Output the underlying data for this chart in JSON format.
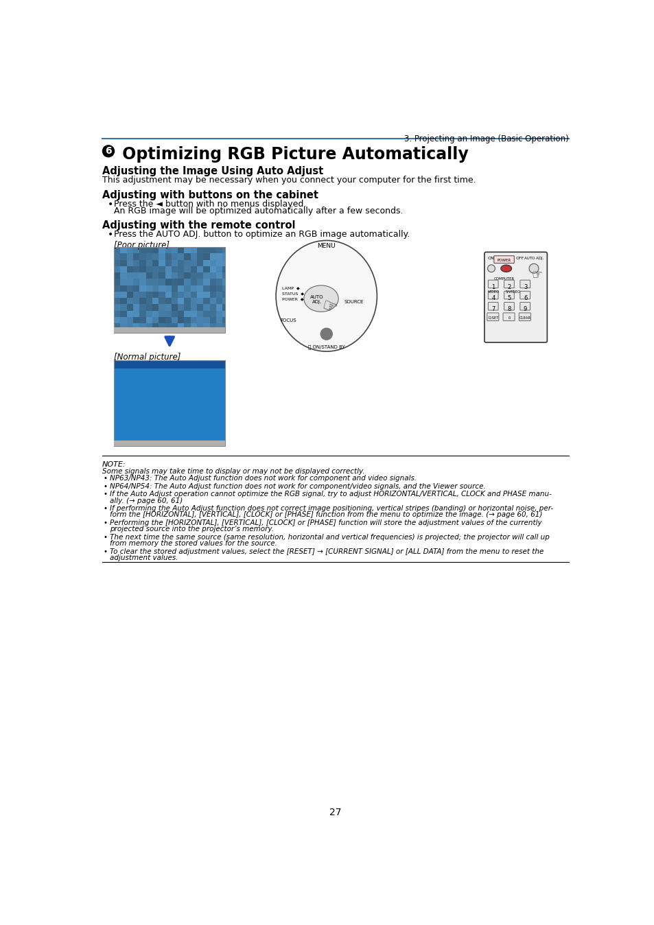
{
  "page_bg": "#ffffff",
  "header_line_color": "#2E75B6",
  "header_text": "3. Projecting an Image (Basic Operation)",
  "title_text": "Optimizing RGB Picture Automatically",
  "section1_heading": "Adjusting the Image Using Auto Adjust",
  "section1_body": "This adjustment may be necessary when you connect your computer for the first time.",
  "section2_heading": "Adjusting with buttons on the cabinet",
  "section2_bullet1_main": "Press the ◄ button with no menus displayed.",
  "section2_bullet1_sub": "An RGB image will be optimized automatically after a few seconds.",
  "section3_heading": "Adjusting with the remote control",
  "section3_bullet1": "Press the AUTO ADJ. button to optimize an RGB image automatically.",
  "poor_picture_label": "[Poor picture]",
  "normal_picture_label": "[Normal picture]",
  "note_label": "NOTE:",
  "note_intro": "Some signals may take time to display or may not be displayed correctly.",
  "note_bullets": [
    "NP63/NP43: The Auto Adjust function does not work for component and video signals.",
    "NP64/NP54: The Auto Adjust function does not work for component/video signals, and the Viewer source.",
    "If the Auto Adjust operation cannot optimize the RGB signal, try to adjust HORIZONTAL/VERTICAL, CLOCK and PHASE manu-\nally. (→ page 60, 61)",
    "If performing the Auto Adjust function does not correct image positioning, vertical stripes (banding) or horizontal noise, per-\nform the [HORIZONTAL], [VERTICAL], [CLOCK] or [PHASE] function from the menu to optimize the image. (→ page 60, 61)",
    "Performing the [HORIZONTAL], [VERTICAL], [CLOCK] or [PHASE] function will store the adjustment values of the currently\nprojected source into the projector’s memory.",
    "The next time the same source (same resolution, horizontal and vertical frequencies) is projected; the projector will call up\nfrom memory the stored values for the source.",
    "To clear the stored adjustment values, select the [RESET] → [CURRENT SIGNAL] or [ALL DATA] from the menu to reset the\nadjustment values."
  ],
  "note_link_color": "#2E75B6",
  "page_number": "27"
}
